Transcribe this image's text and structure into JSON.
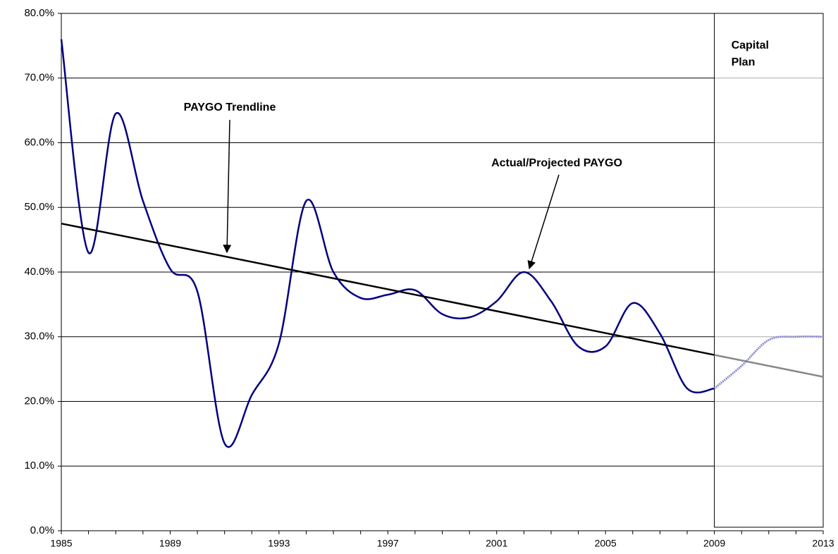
{
  "chart_data": {
    "type": "line",
    "x": [
      1985,
      1986,
      1987,
      1988,
      1989,
      1990,
      1991,
      1992,
      1993,
      1994,
      1995,
      1996,
      1997,
      1998,
      1999,
      2000,
      2001,
      2002,
      2003,
      2004,
      2005,
      2006,
      2007,
      2008,
      2009,
      2010,
      2011,
      2012,
      2013
    ],
    "series": [
      {
        "name": "Actual/Projected PAYGO",
        "color": "#000080",
        "values": [
          76,
          43,
          64.5,
          51,
          40.5,
          37,
          13.5,
          21,
          29,
          51,
          40,
          36,
          36.5,
          37.2,
          33.5,
          33,
          35.5,
          40,
          35.5,
          28.5,
          28.5,
          35.2,
          30.5,
          22,
          22,
          25.5,
          29.5,
          30,
          30
        ]
      },
      {
        "name": "PAYGO Trendline",
        "color": "#000000",
        "x": [
          1985,
          2013
        ],
        "values": [
          47.5,
          23.8
        ]
      }
    ],
    "region": {
      "label": "Capital Plan",
      "x": [
        2009,
        2013
      ]
    },
    "xlim": [
      1985,
      2013
    ],
    "xticks": [
      1985,
      1989,
      1993,
      1997,
      2001,
      2005,
      2009,
      2013
    ],
    "ylim": [
      0,
      80
    ],
    "yticks": [
      {
        "value": 0,
        "label": "0.0%"
      },
      {
        "value": 10,
        "label": "10.0%"
      },
      {
        "value": 20,
        "label": "20.0%"
      },
      {
        "value": 30,
        "label": "30.0%"
      },
      {
        "value": 40,
        "label": "40.0%"
      },
      {
        "value": 50,
        "label": "50.0%"
      },
      {
        "value": 60,
        "label": "60.0%"
      },
      {
        "value": 70,
        "label": "70.0%"
      },
      {
        "value": 80,
        "label": "80.0%"
      }
    ],
    "grid": true
  }
}
